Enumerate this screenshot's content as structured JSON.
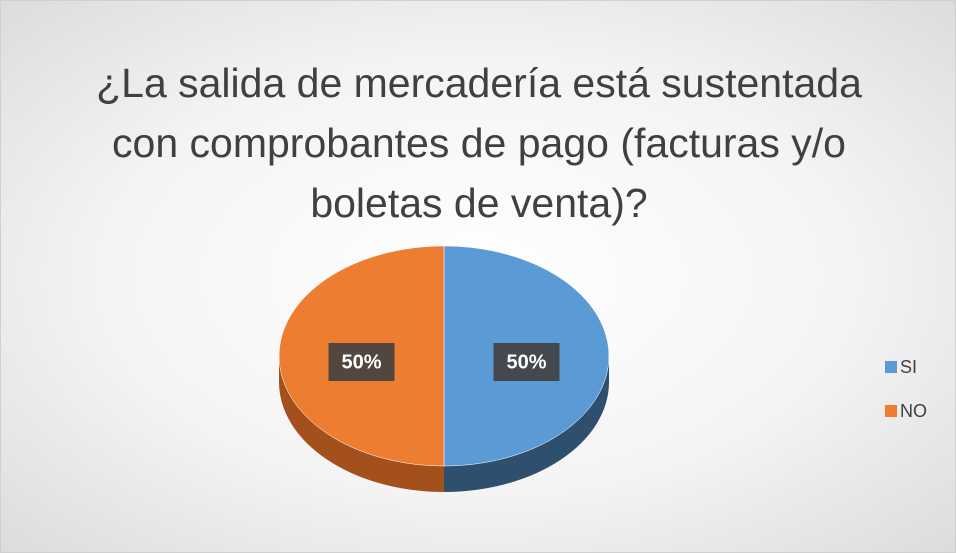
{
  "chart_data": {
    "type": "pie",
    "title": "¿La salida de mercadería está sustentada con comprobantes de pago (facturas y/o boletas de venta)?",
    "categories": [
      "SI",
      "NO"
    ],
    "values": [
      50,
      50
    ],
    "value_labels": [
      "50%",
      "50%"
    ],
    "colors": [
      "#5b9bd5",
      "#ed7d31"
    ],
    "side_colors": [
      "#2e4f6e",
      "#a4501c"
    ],
    "legend": "right"
  }
}
